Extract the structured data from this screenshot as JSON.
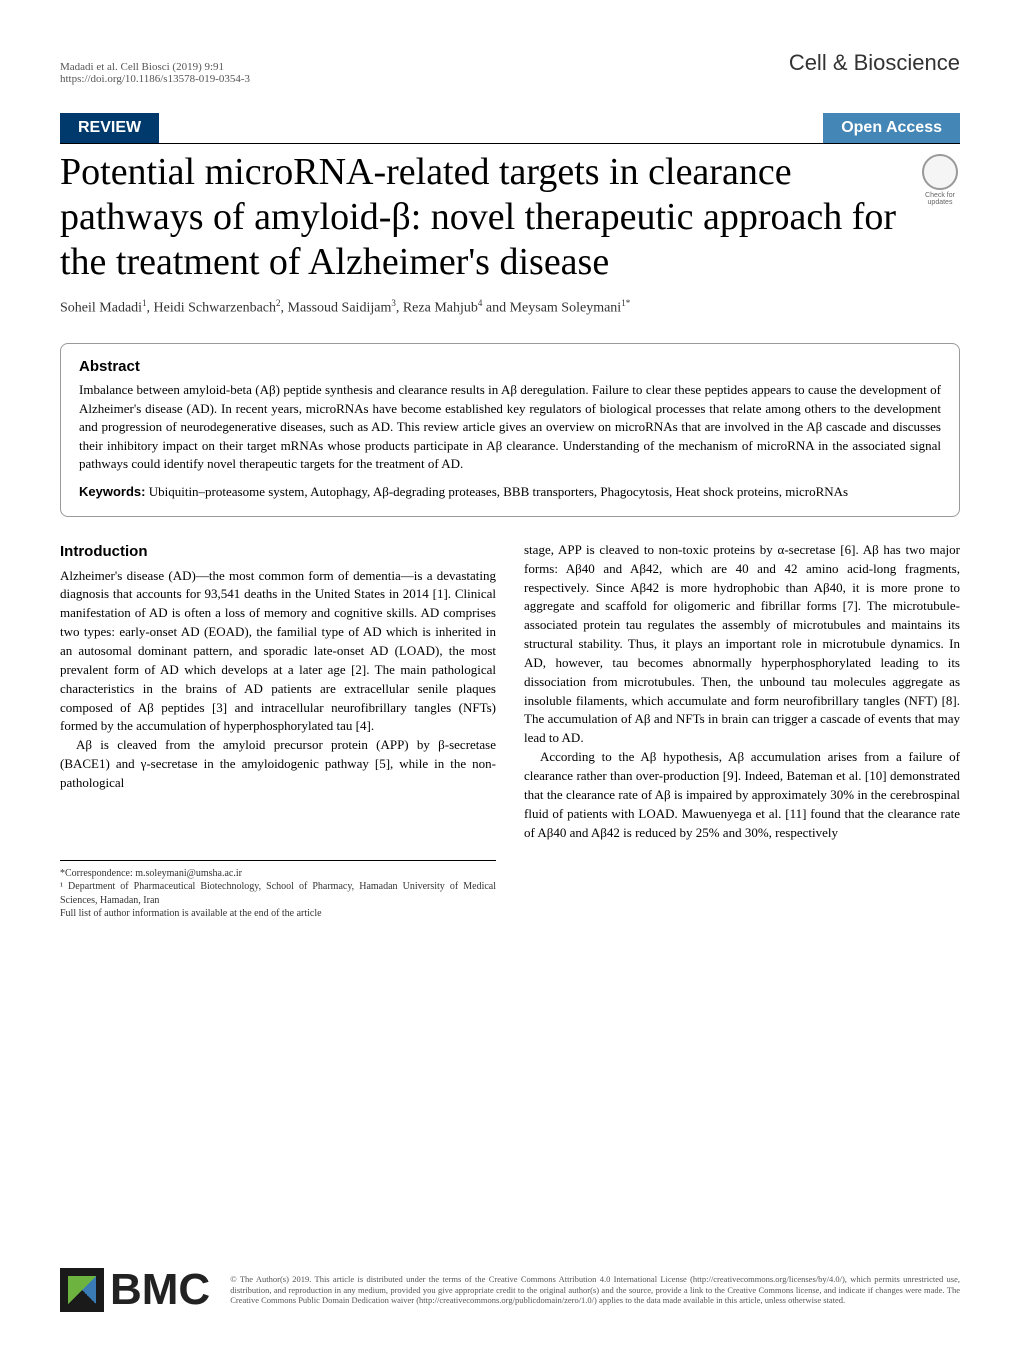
{
  "header": {
    "citation_line1": "Madadi et al. Cell Biosci          (2019) 9:91",
    "citation_line2": "https://doi.org/10.1186/s13578-019-0354-3",
    "journal": "Cell & Bioscience"
  },
  "banner": {
    "review_label": "REVIEW",
    "openaccess_label": "Open Access"
  },
  "crossmark": {
    "label": "Check for updates"
  },
  "title": "Potential microRNA-related targets in clearance pathways of amyloid-β: novel therapeutic approach for the treatment of Alzheimer's disease",
  "authors_html": "Soheil Madadi<sup>1</sup>, Heidi Schwarzenbach<sup>2</sup>, Massoud Saidijam<sup>3</sup>, Reza Mahjub<sup>4</sup> and Meysam Soleymani<sup>1*</sup>",
  "abstract": {
    "heading": "Abstract",
    "text": "Imbalance between amyloid-beta (Aβ) peptide synthesis and clearance results in Aβ deregulation. Failure to clear these peptides appears to cause the development of Alzheimer's disease (AD). In recent years, microRNAs have become established key regulators of biological processes that relate among others to the development and progression of neurodegenerative diseases, such as AD. This review article gives an overview on microRNAs that are involved in the Aβ cascade and discusses their inhibitory impact on their target mRNAs whose products participate in Aβ clearance. Understanding of the mechanism of microRNA in the associated signal pathways could identify novel therapeutic targets for the treatment of AD.",
    "keywords_label": "Keywords:",
    "keywords": "Ubiquitin–proteasome system, Autophagy, Aβ-degrading proteases, BBB transporters, Phagocytosis, Heat shock proteins, microRNAs"
  },
  "body": {
    "intro_heading": "Introduction",
    "col1_p1": "Alzheimer's disease (AD)—the most common form of dementia—is a devastating diagnosis that accounts for 93,541 deaths in the United States in 2014 [1]. Clinical manifestation of AD is often a loss of memory and cognitive skills. AD comprises two types: early-onset AD (EOAD), the familial type of AD which is inherited in an autosomal dominant pattern, and sporadic late-onset AD (LOAD), the most prevalent form of AD which develops at a later age [2]. The main pathological characteristics in the brains of AD patients are extracellular senile plaques composed of Aβ peptides [3] and intracellular neurofibrillary tangles (NFTs) formed by the accumulation of hyperphosphorylated tau [4].",
    "col1_p2": "Aβ is cleaved from the amyloid precursor protein (APP) by β-secretase (BACE1) and γ-secretase in the amyloidogenic pathway [5], while in the non-pathological",
    "col2_p1": "stage, APP is cleaved to non-toxic proteins by α-secretase [6]. Aβ has two major forms: Aβ40 and Aβ42, which are 40 and 42 amino acid-long fragments, respectively. Since Aβ42 is more hydrophobic than Aβ40, it is more prone to aggregate and scaffold for oligomeric and fibrillar forms [7]. The microtubule-associated protein tau regulates the assembly of microtubules and maintains its structural stability. Thus, it plays an important role in microtubule dynamics. In AD, however, tau becomes abnormally hyperphosphorylated leading to its dissociation from microtubules. Then, the unbound tau molecules aggregate as insoluble filaments, which accumulate and form neurofibrillary tangles (NFT) [8]. The accumulation of Aβ and NFTs in brain can trigger a cascade of events that may lead to AD.",
    "col2_p2": "According to the Aβ hypothesis, Aβ accumulation arises from a failure of clearance rather than over-production [9]. Indeed, Bateman et al. [10] demonstrated that the clearance rate of Aβ is impaired by approximately 30% in the cerebrospinal fluid of patients with LOAD. Mawuenyega et al. [11] found that the clearance rate of Aβ40 and Aβ42 is reduced by 25% and 30%, respectively"
  },
  "correspondence": {
    "line1": "*Correspondence:  m.soleymani@umsha.ac.ir",
    "line2": "¹ Department of Pharmaceutical Biotechnology, School of Pharmacy, Hamadan University of Medical Sciences, Hamadan, Iran",
    "line3": "Full list of author information is available at the end of the article"
  },
  "footer": {
    "bmc_label": "BMC",
    "license": "© The Author(s) 2019. This article is distributed under the terms of the Creative Commons Attribution 4.0 International License (http://creativecommons.org/licenses/by/4.0/), which permits unrestricted use, distribution, and reproduction in any medium, provided you give appropriate credit to the original author(s) and the source, provide a link to the Creative Commons license, and indicate if changes were made. The Creative Commons Public Domain Dedication waiver (http://creativecommons.org/publicdomain/zero/1.0/) applies to the data made available in this article, unless otherwise stated."
  },
  "colors": {
    "review_bg": "#00396b",
    "openaccess_bg": "#4486b5",
    "link": "#0066cc",
    "text": "#000000",
    "muted": "#555555"
  }
}
